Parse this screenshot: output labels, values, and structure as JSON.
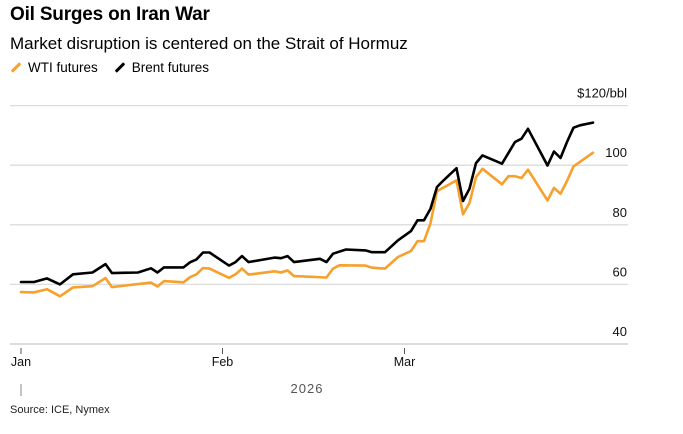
{
  "header": {
    "title": "Oil Surges on Iran War",
    "subtitle": "Market disruption is centered on the Strait of Hormuz"
  },
  "footer": {
    "source": "Source: ICE, Nymex"
  },
  "chart_data": {
    "type": "line",
    "title": "Oil Surges on Iran War",
    "subtitle": "Market disruption is centered on the Strait of Hormuz",
    "xlabel": "2026",
    "ylabel": "$/bbl",
    "x_unit": "days since Jan 1, 2026",
    "xlim": [
      0,
      95
    ],
    "ylim": [
      40,
      120
    ],
    "y_ticks": [
      {
        "value": 120,
        "label": "$120/bbl"
      },
      {
        "value": 100,
        "label": "100"
      },
      {
        "value": 80,
        "label": "80"
      },
      {
        "value": 60,
        "label": "60"
      },
      {
        "value": 40,
        "label": "40"
      }
    ],
    "x_ticks": [
      {
        "value": 0,
        "label": "Jan"
      },
      {
        "value": 31,
        "label": "Feb"
      },
      {
        "value": 59,
        "label": "Mar"
      }
    ],
    "grid": true,
    "legend_position": "top-left",
    "series": [
      {
        "name": "WTI futures",
        "color": "#f7a02c",
        "points": [
          [
            0,
            57.4
          ],
          [
            2,
            57.3
          ],
          [
            4,
            58.4
          ],
          [
            6,
            56
          ],
          [
            8,
            59
          ],
          [
            11,
            59.4
          ],
          [
            13,
            62.1
          ],
          [
            14,
            59.1
          ],
          [
            20,
            60.6
          ],
          [
            21,
            59.3
          ],
          [
            22,
            61.1
          ],
          [
            25,
            60.7
          ],
          [
            26,
            62.4
          ],
          [
            27,
            63.4
          ],
          [
            28,
            65.5
          ],
          [
            29,
            65.3
          ],
          [
            32,
            62.2
          ],
          [
            33,
            63.4
          ],
          [
            34,
            65.3
          ],
          [
            35,
            63.3
          ],
          [
            39,
            64.4
          ],
          [
            40,
            64
          ],
          [
            41,
            64.7
          ],
          [
            42,
            62.8
          ],
          [
            47,
            62.3
          ],
          [
            48,
            65.3
          ],
          [
            49,
            66.4
          ],
          [
            53,
            66.3
          ],
          [
            54,
            65.6
          ],
          [
            56,
            65.3
          ],
          [
            58,
            69.2
          ],
          [
            60,
            71.2
          ],
          [
            61,
            74.5
          ],
          [
            62,
            74.5
          ],
          [
            63,
            80.5
          ],
          [
            64,
            91.3
          ],
          [
            67,
            94.9
          ],
          [
            68,
            83.5
          ],
          [
            69,
            87.3
          ],
          [
            70,
            96
          ],
          [
            71,
            98.8
          ],
          [
            74,
            93.6
          ],
          [
            75,
            96.3
          ],
          [
            76,
            96.3
          ],
          [
            77,
            95.7
          ],
          [
            78,
            98.5
          ],
          [
            81,
            88.2
          ],
          [
            82,
            92.4
          ],
          [
            83,
            90.4
          ],
          [
            84,
            94.7
          ],
          [
            85,
            99.6
          ],
          [
            88,
            104.2
          ]
        ]
      },
      {
        "name": "Brent futures",
        "color": "#000000",
        "points": [
          [
            0,
            60.8
          ],
          [
            2,
            60.8
          ],
          [
            4,
            62
          ],
          [
            6,
            60
          ],
          [
            8,
            63.4
          ],
          [
            11,
            64
          ],
          [
            13,
            66.8
          ],
          [
            14,
            63.8
          ],
          [
            18,
            64
          ],
          [
            20,
            65.4
          ],
          [
            21,
            64
          ],
          [
            22,
            65.7
          ],
          [
            25,
            65.7
          ],
          [
            26,
            67.4
          ],
          [
            27,
            68.4
          ],
          [
            28,
            70.7
          ],
          [
            29,
            70.7
          ],
          [
            32,
            66.3
          ],
          [
            33,
            67.5
          ],
          [
            34,
            69.5
          ],
          [
            35,
            67.5
          ],
          [
            39,
            69
          ],
          [
            40,
            68.8
          ],
          [
            41,
            69.5
          ],
          [
            42,
            67.5
          ],
          [
            46,
            68.6
          ],
          [
            47,
            67.5
          ],
          [
            48,
            70.3
          ],
          [
            50,
            71.7
          ],
          [
            53,
            71.4
          ],
          [
            54,
            70.8
          ],
          [
            56,
            70.8
          ],
          [
            58,
            74.8
          ],
          [
            60,
            77.9
          ],
          [
            61,
            81.5
          ],
          [
            62,
            81.5
          ],
          [
            63,
            85.4
          ],
          [
            64,
            92.7
          ],
          [
            65,
            94.9
          ],
          [
            67,
            99
          ],
          [
            68,
            88
          ],
          [
            69,
            92.1
          ],
          [
            70,
            100.7
          ],
          [
            71,
            103.3
          ],
          [
            74,
            100.5
          ],
          [
            76,
            107.8
          ],
          [
            77,
            108.9
          ],
          [
            78,
            112.2
          ],
          [
            81,
            99.9
          ],
          [
            82,
            104.6
          ],
          [
            83,
            102.4
          ],
          [
            84,
            107.8
          ],
          [
            85,
            112.6
          ],
          [
            86,
            113.4
          ],
          [
            88,
            114.3
          ]
        ]
      }
    ]
  }
}
